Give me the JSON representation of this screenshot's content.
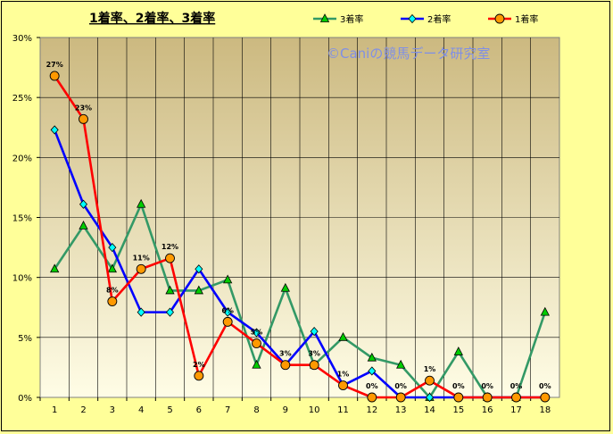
{
  "chart_data": {
    "type": "line",
    "title": "1着率、2着率、3着率",
    "watermark": "©Caniの競馬データ研究室",
    "x": [
      1,
      2,
      3,
      4,
      5,
      6,
      7,
      8,
      9,
      10,
      11,
      12,
      13,
      14,
      15,
      16,
      17,
      18
    ],
    "ylim": [
      0,
      30
    ],
    "yticks": [
      "0%",
      "5%",
      "10%",
      "15%",
      "20%",
      "25%",
      "30%"
    ],
    "grid": true,
    "legend_position": "top-right",
    "series": [
      {
        "name": "3着率",
        "color": "#339966",
        "marker": "triangle",
        "marker_fill": "#00cc00",
        "values": [
          10.7,
          14.3,
          10.7,
          16.1,
          8.9,
          8.9,
          9.8,
          2.7,
          9.1,
          2.7,
          5.0,
          3.3,
          2.7,
          0.0,
          3.8,
          0.0,
          0.0,
          7.1
        ]
      },
      {
        "name": "2着率",
        "color": "#0000ff",
        "marker": "diamond",
        "marker_fill": "#00ffff",
        "values": [
          22.3,
          16.1,
          12.5,
          7.1,
          7.1,
          10.7,
          7.1,
          5.4,
          2.7,
          5.5,
          1.0,
          2.2,
          0.0,
          0.0,
          0.0,
          0.0,
          0.0,
          0.0
        ]
      },
      {
        "name": "1着率",
        "color": "#ff0000",
        "marker": "circle",
        "marker_fill": "#ff9900",
        "values": [
          26.8,
          23.2,
          8.0,
          10.7,
          11.6,
          1.8,
          6.3,
          4.5,
          2.7,
          2.7,
          1.0,
          0.0,
          0.0,
          1.4,
          0.0,
          0.0,
          0.0,
          0.0
        ]
      }
    ],
    "data_labels": [
      "27%",
      "23%",
      "8%",
      "11%",
      "12%",
      "2%",
      "6%",
      "5%",
      "3%",
      "3%",
      "1%",
      "0%",
      "0%",
      "1%",
      "0%",
      "0%",
      "0%",
      "0%"
    ]
  }
}
